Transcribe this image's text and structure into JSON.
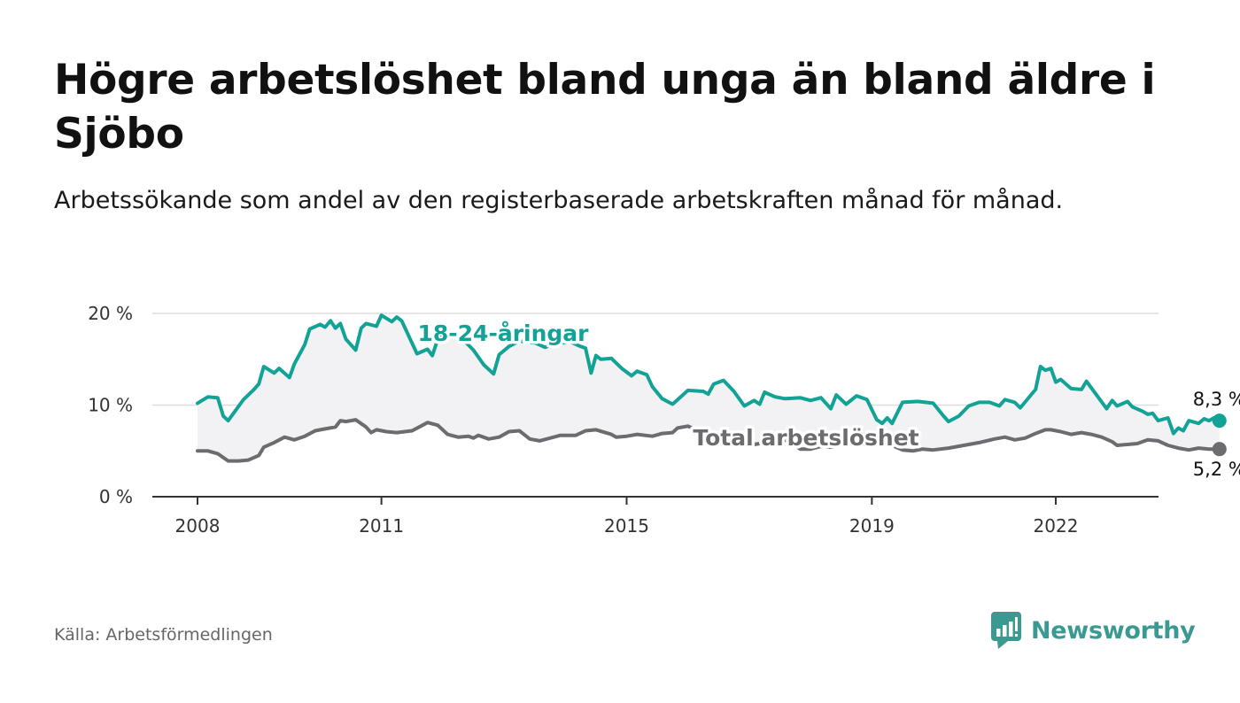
{
  "header": {
    "title": "Högre arbetslöshet bland unga än bland äldre i Sjöbo",
    "subtitle": "Arbetssökande som andel av den registerbaserade arbetskraften månad för månad."
  },
  "footer": {
    "source": "Källa: Arbetsförmedlingen",
    "brand": "Newsworthy"
  },
  "colors": {
    "youth": "#13a396",
    "total": "#6b6b70",
    "band": "#f2f2f4",
    "grid": "#dddddd",
    "brand": "#3a9a92"
  },
  "icons": {
    "logo": "newsworthy-logo-icon"
  },
  "chart_data": {
    "type": "line",
    "title": "Högre arbetslöshet bland unga än bland äldre i Sjöbo",
    "xlabel": "",
    "ylabel": "",
    "x_range": [
      2008,
      2023.0
    ],
    "ylim": [
      0,
      20
    ],
    "y_ticks": [
      0,
      10,
      20
    ],
    "y_tick_labels": [
      "0 %",
      "10 %",
      "20 %"
    ],
    "x_ticks": [
      2008,
      2011,
      2015,
      2019,
      2022
    ],
    "x_tick_labels": [
      "2008",
      "2011",
      "2015",
      "2019",
      "2022"
    ],
    "grid": true,
    "legend": "inline labels",
    "series": [
      {
        "name": "18-24-åringar",
        "color": "#13a396",
        "last_label": "8,3 %",
        "points": [
          [
            2008.0,
            10.2
          ],
          [
            2008.17,
            10.9
          ],
          [
            2008.33,
            10.8
          ],
          [
            2008.42,
            8.8
          ],
          [
            2008.5,
            8.3
          ],
          [
            2008.75,
            10.6
          ],
          [
            2008.92,
            11.7
          ],
          [
            2009.0,
            12.3
          ],
          [
            2009.08,
            14.2
          ],
          [
            2009.25,
            13.5
          ],
          [
            2009.33,
            14.0
          ],
          [
            2009.5,
            13.0
          ],
          [
            2009.58,
            14.5
          ],
          [
            2009.75,
            16.6
          ],
          [
            2009.83,
            18.3
          ],
          [
            2010.0,
            18.8
          ],
          [
            2010.08,
            18.5
          ],
          [
            2010.17,
            19.2
          ],
          [
            2010.25,
            18.4
          ],
          [
            2010.33,
            18.9
          ],
          [
            2010.42,
            17.2
          ],
          [
            2010.58,
            16.0
          ],
          [
            2010.67,
            18.4
          ],
          [
            2010.75,
            18.9
          ],
          [
            2010.92,
            18.6
          ],
          [
            2011.0,
            19.8
          ],
          [
            2011.17,
            19.1
          ],
          [
            2011.25,
            19.6
          ],
          [
            2011.33,
            19.2
          ],
          [
            2011.58,
            15.6
          ],
          [
            2011.75,
            16.1
          ],
          [
            2011.83,
            15.4
          ],
          [
            2011.92,
            17.2
          ],
          [
            2012.08,
            18.1
          ],
          [
            2012.25,
            17.7
          ],
          [
            2012.5,
            16.0
          ],
          [
            2012.67,
            14.4
          ],
          [
            2012.83,
            13.4
          ],
          [
            2012.92,
            15.5
          ],
          [
            2013.08,
            16.4
          ],
          [
            2013.25,
            17.0
          ],
          [
            2013.5,
            16.8
          ],
          [
            2013.67,
            16.3
          ],
          [
            2013.83,
            16.7
          ],
          [
            2014.08,
            16.9
          ],
          [
            2014.25,
            16.4
          ],
          [
            2014.33,
            16.2
          ],
          [
            2014.42,
            13.5
          ],
          [
            2014.5,
            15.4
          ],
          [
            2014.58,
            15.0
          ],
          [
            2014.75,
            15.1
          ],
          [
            2014.92,
            14.0
          ],
          [
            2015.08,
            13.2
          ],
          [
            2015.17,
            13.7
          ],
          [
            2015.33,
            13.3
          ],
          [
            2015.42,
            12.0
          ],
          [
            2015.58,
            10.7
          ],
          [
            2015.75,
            10.1
          ],
          [
            2016.0,
            11.6
          ],
          [
            2016.25,
            11.5
          ],
          [
            2016.33,
            11.2
          ],
          [
            2016.42,
            12.3
          ],
          [
            2016.58,
            12.7
          ],
          [
            2016.75,
            11.5
          ],
          [
            2016.92,
            9.9
          ],
          [
            2017.08,
            10.5
          ],
          [
            2017.17,
            10.1
          ],
          [
            2017.25,
            11.4
          ],
          [
            2017.42,
            10.9
          ],
          [
            2017.58,
            10.7
          ],
          [
            2017.83,
            10.8
          ],
          [
            2018.0,
            10.5
          ],
          [
            2018.17,
            10.8
          ],
          [
            2018.33,
            9.6
          ],
          [
            2018.42,
            11.1
          ],
          [
            2018.58,
            10.1
          ],
          [
            2018.75,
            11.0
          ],
          [
            2018.92,
            10.6
          ],
          [
            2019.08,
            8.4
          ],
          [
            2019.17,
            8.0
          ],
          [
            2019.25,
            8.6
          ],
          [
            2019.33,
            8.0
          ],
          [
            2019.5,
            10.3
          ],
          [
            2019.75,
            10.4
          ],
          [
            2020.0,
            10.2
          ],
          [
            2020.17,
            8.8
          ],
          [
            2020.25,
            8.2
          ],
          [
            2020.42,
            8.8
          ],
          [
            2020.58,
            9.9
          ],
          [
            2020.75,
            10.3
          ],
          [
            2020.92,
            10.3
          ],
          [
            2021.08,
            9.9
          ],
          [
            2021.17,
            10.6
          ],
          [
            2021.33,
            10.3
          ],
          [
            2021.42,
            9.7
          ],
          [
            2021.67,
            11.7
          ],
          [
            2021.75,
            14.2
          ],
          [
            2021.83,
            13.8
          ],
          [
            2021.92,
            14.0
          ],
          [
            2022.0,
            12.5
          ],
          [
            2022.08,
            12.8
          ],
          [
            2022.25,
            11.8
          ],
          [
            2022.42,
            11.7
          ],
          [
            2022.5,
            12.6
          ],
          [
            2022.83,
            9.6
          ],
          [
            2022.92,
            10.5
          ],
          [
            2023.0,
            9.9
          ],
          [
            2023.17,
            10.4
          ],
          [
            2023.25,
            9.8
          ],
          [
            2023.42,
            9.3
          ],
          [
            2023.5,
            9.0
          ],
          [
            2023.58,
            9.1
          ],
          [
            2023.67,
            8.3
          ],
          [
            2023.83,
            8.6
          ],
          [
            2023.92,
            6.9
          ],
          [
            2024.0,
            7.5
          ],
          [
            2024.08,
            7.2
          ],
          [
            2024.17,
            8.3
          ],
          [
            2024.33,
            8.0
          ],
          [
            2024.42,
            8.5
          ],
          [
            2024.5,
            8.3
          ],
          [
            2024.58,
            8.6
          ],
          [
            2024.67,
            8.3
          ]
        ]
      },
      {
        "name": "Total arbetslöshet",
        "color": "#6b6b70",
        "last_label": "5,2 %",
        "points": [
          [
            2008.0,
            5.0
          ],
          [
            2008.17,
            5.0
          ],
          [
            2008.33,
            4.7
          ],
          [
            2008.5,
            3.9
          ],
          [
            2008.67,
            3.9
          ],
          [
            2008.83,
            4.0
          ],
          [
            2009.0,
            4.5
          ],
          [
            2009.08,
            5.4
          ],
          [
            2009.25,
            5.9
          ],
          [
            2009.42,
            6.5
          ],
          [
            2009.58,
            6.2
          ],
          [
            2009.75,
            6.6
          ],
          [
            2009.92,
            7.2
          ],
          [
            2010.08,
            7.4
          ],
          [
            2010.25,
            7.6
          ],
          [
            2010.33,
            8.3
          ],
          [
            2010.42,
            8.2
          ],
          [
            2010.58,
            8.4
          ],
          [
            2010.75,
            7.6
          ],
          [
            2010.83,
            7.0
          ],
          [
            2010.92,
            7.3
          ],
          [
            2011.08,
            7.1
          ],
          [
            2011.25,
            7.0
          ],
          [
            2011.5,
            7.2
          ],
          [
            2011.67,
            7.8
          ],
          [
            2011.75,
            8.1
          ],
          [
            2011.92,
            7.8
          ],
          [
            2012.08,
            6.8
          ],
          [
            2012.25,
            6.5
          ],
          [
            2012.42,
            6.6
          ],
          [
            2012.5,
            6.4
          ],
          [
            2012.58,
            6.7
          ],
          [
            2012.75,
            6.3
          ],
          [
            2012.92,
            6.5
          ],
          [
            2013.08,
            7.1
          ],
          [
            2013.25,
            7.2
          ],
          [
            2013.42,
            6.3
          ],
          [
            2013.58,
            6.1
          ],
          [
            2013.75,
            6.4
          ],
          [
            2013.92,
            6.7
          ],
          [
            2014.17,
            6.7
          ],
          [
            2014.33,
            7.2
          ],
          [
            2014.5,
            7.3
          ],
          [
            2014.75,
            6.8
          ],
          [
            2014.83,
            6.5
          ],
          [
            2015.0,
            6.6
          ],
          [
            2015.17,
            6.8
          ],
          [
            2015.42,
            6.6
          ],
          [
            2015.58,
            6.9
          ],
          [
            2015.75,
            7.0
          ],
          [
            2015.83,
            7.5
          ],
          [
            2016.0,
            7.7
          ],
          [
            2016.17,
            7.2
          ],
          [
            2016.25,
            6.9
          ],
          [
            2016.5,
            6.0
          ],
          [
            2016.67,
            5.9
          ],
          [
            2016.83,
            5.8
          ],
          [
            2017.0,
            5.9
          ],
          [
            2017.08,
            5.7
          ],
          [
            2017.17,
            5.8
          ],
          [
            2017.33,
            6.3
          ],
          [
            2017.42,
            6.4
          ],
          [
            2017.58,
            6.2
          ],
          [
            2017.75,
            5.6
          ],
          [
            2017.83,
            5.2
          ],
          [
            2018.0,
            5.2
          ],
          [
            2018.17,
            5.5
          ],
          [
            2018.33,
            5.4
          ],
          [
            2018.5,
            5.6
          ],
          [
            2018.75,
            6.0
          ],
          [
            2019.0,
            6.2
          ],
          [
            2019.17,
            6.0
          ],
          [
            2019.33,
            5.6
          ],
          [
            2019.5,
            5.1
          ],
          [
            2019.67,
            5.0
          ],
          [
            2019.83,
            5.2
          ],
          [
            2020.0,
            5.1
          ],
          [
            2020.25,
            5.3
          ],
          [
            2020.5,
            5.6
          ],
          [
            2020.75,
            5.9
          ],
          [
            2021.0,
            6.3
          ],
          [
            2021.17,
            6.5
          ],
          [
            2021.33,
            6.2
          ],
          [
            2021.5,
            6.4
          ],
          [
            2021.67,
            6.9
          ],
          [
            2021.83,
            7.3
          ],
          [
            2021.92,
            7.3
          ],
          [
            2022.08,
            7.1
          ],
          [
            2022.25,
            6.8
          ],
          [
            2022.42,
            7.0
          ],
          [
            2022.58,
            6.8
          ],
          [
            2022.75,
            6.5
          ],
          [
            2022.92,
            6.0
          ],
          [
            2023.0,
            5.6
          ],
          [
            2023.17,
            5.7
          ],
          [
            2023.33,
            5.8
          ],
          [
            2023.5,
            6.2
          ],
          [
            2023.67,
            6.1
          ],
          [
            2023.83,
            5.6
          ],
          [
            2024.0,
            5.3
          ],
          [
            2024.17,
            5.1
          ],
          [
            2024.33,
            5.3
          ],
          [
            2024.5,
            5.2
          ],
          [
            2024.67,
            5.2
          ]
        ]
      }
    ]
  }
}
